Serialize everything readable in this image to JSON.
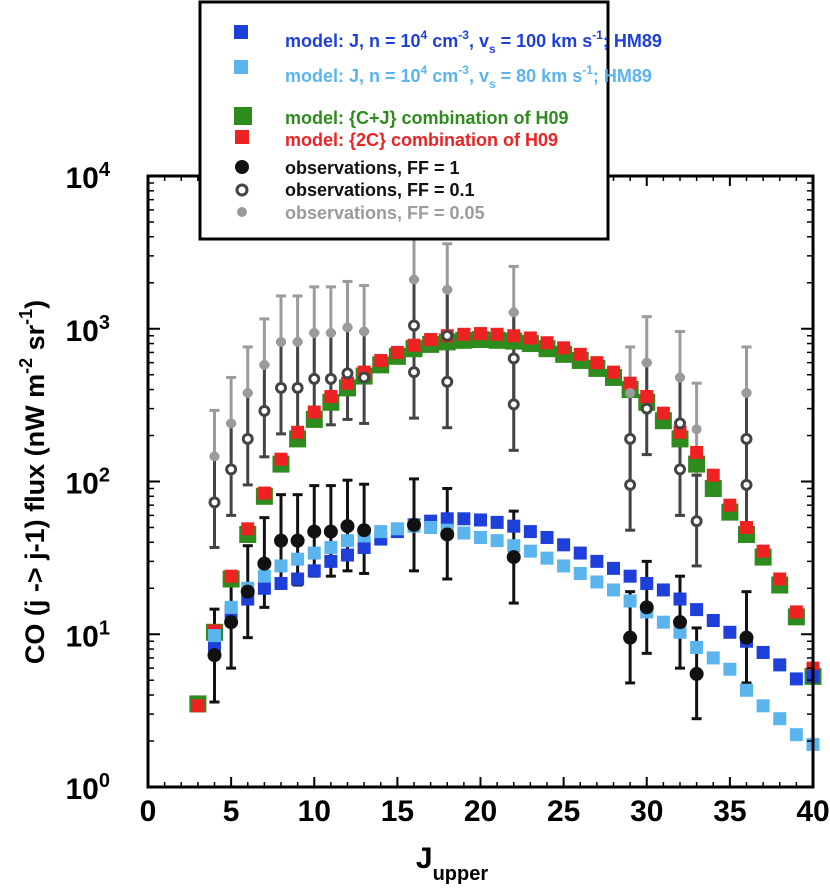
{
  "chart_data": {
    "type": "scatter",
    "title": "",
    "xlabel": "J",
    "xlabel_sub": "upper",
    "ylabel": "CO (j -> j-1) flux (nW m",
    "ylabel_sup1": "-2",
    "ylabel_mid": " sr",
    "ylabel_sup2": "-1",
    "ylabel_end": ")",
    "xlim": [
      0,
      40
    ],
    "ylim": [
      1,
      10000
    ],
    "yscale": "log",
    "x_ticks": [
      "0",
      "5",
      "10",
      "15",
      "20",
      "25",
      "30",
      "35",
      "40"
    ],
    "y_ticks": [
      {
        "base": "10",
        "exp": "0"
      },
      {
        "base": "10",
        "exp": "1"
      },
      {
        "base": "10",
        "exp": "2"
      },
      {
        "base": "10",
        "exp": "3"
      },
      {
        "base": "10",
        "exp": "4"
      }
    ],
    "legend_position": "top-center",
    "series": [
      {
        "name": "model: {C+J} combination of H09",
        "color": "#2e8b1e",
        "marker": "square-large",
        "x": [
          3,
          4,
          5,
          6,
          7,
          8,
          9,
          10,
          11,
          12,
          13,
          14,
          15,
          16,
          17,
          18,
          19,
          20,
          21,
          22,
          23,
          24,
          25,
          26,
          27,
          28,
          29,
          30,
          31,
          32,
          33,
          34,
          35,
          36,
          37,
          38,
          39,
          40
        ],
        "y": [
          3.5,
          10.3,
          23,
          45,
          80,
          130,
          190,
          255,
          330,
          410,
          490,
          580,
          660,
          740,
          790,
          820,
          840,
          850,
          840,
          830,
          800,
          740,
          680,
          620,
          550,
          480,
          400,
          330,
          250,
          190,
          130,
          90,
          63,
          45,
          32,
          21,
          13,
          5.3
        ]
      },
      {
        "name": "model: {2C} combination of H09",
        "color": "#ee2222",
        "marker": "square",
        "x": [
          3,
          4,
          5,
          6,
          7,
          8,
          9,
          10,
          11,
          12,
          13,
          14,
          15,
          16,
          17,
          18,
          19,
          20,
          21,
          22,
          23,
          24,
          25,
          26,
          27,
          28,
          29,
          30,
          31,
          32,
          33,
          34,
          35,
          36,
          37,
          38,
          39,
          40
        ],
        "y": [
          3.4,
          10.5,
          24,
          49,
          84,
          140,
          210,
          285,
          360,
          440,
          520,
          620,
          700,
          780,
          850,
          900,
          920,
          930,
          920,
          900,
          870,
          810,
          750,
          680,
          600,
          520,
          440,
          360,
          280,
          210,
          155,
          110,
          70,
          50,
          35,
          23,
          14,
          6
        ]
      },
      {
        "name": "model: J, n = 10^4 cm^-3, v_s = 100 km s^-1; HM89",
        "color": "#1f3fdb",
        "marker": "square",
        "x": [
          4,
          5,
          6,
          7,
          8,
          9,
          10,
          11,
          12,
          13,
          14,
          15,
          16,
          17,
          18,
          19,
          20,
          21,
          22,
          23,
          24,
          25,
          26,
          27,
          28,
          29,
          30,
          31,
          32,
          33,
          34,
          35,
          36,
          37,
          38,
          39,
          40
        ],
        "y": [
          8.5,
          14,
          17,
          20,
          21.5,
          23,
          26,
          30,
          33,
          37,
          42,
          47,
          52,
          55,
          57,
          57,
          56,
          54,
          51,
          47,
          43,
          38.5,
          34,
          30,
          27,
          24,
          21.5,
          19.5,
          17,
          14.5,
          12.3,
          10.3,
          9,
          7.6,
          6.3,
          5.1,
          5.3
        ]
      },
      {
        "name": "model: J, n = 10^4 cm^-3, v_s = 80 km s^-1; HM89",
        "color": "#5ab4ee",
        "marker": "square",
        "x": [
          4,
          5,
          6,
          7,
          8,
          9,
          10,
          11,
          12,
          13,
          14,
          15,
          16,
          17,
          18,
          19,
          20,
          21,
          22,
          23,
          24,
          25,
          26,
          27,
          28,
          29,
          30,
          31,
          32,
          33,
          34,
          35,
          36,
          37,
          38,
          39,
          40
        ],
        "y": [
          9.8,
          15,
          20,
          24,
          28,
          31,
          34,
          37,
          41,
          44,
          47,
          49,
          51,
          50,
          48,
          46,
          43,
          41,
          38,
          35,
          31.5,
          28,
          25,
          22,
          19.5,
          16.5,
          14,
          12,
          10.3,
          8.2,
          7,
          5.9,
          4.3,
          3.4,
          2.8,
          2.2,
          1.9
        ]
      }
    ],
    "observations": [
      {
        "name": "observations, FF = 1",
        "color": "#111111",
        "marker": "circle",
        "x": [
          4,
          5,
          6,
          7,
          8,
          9,
          10,
          11,
          12,
          13,
          16,
          18,
          22,
          29,
          30,
          32,
          33,
          36
        ],
        "y": [
          7.3,
          12,
          19,
          29,
          41,
          41,
          47,
          47,
          51,
          48,
          52,
          45,
          32,
          9.5,
          15,
          12,
          5.5,
          9.5
        ],
        "lo": [
          3.6,
          6,
          9.5,
          15,
          21,
          21,
          24,
          24,
          26,
          25,
          26,
          23,
          16,
          4.8,
          7.5,
          6,
          2.8,
          4.8
        ],
        "hi": [
          14.6,
          24,
          38,
          58,
          82,
          82,
          94,
          94,
          102,
          96,
          104,
          90,
          64,
          19,
          30,
          24,
          11,
          19
        ]
      },
      {
        "name": "observations, FF = 0.1",
        "color": "#444444",
        "marker": "circle-open",
        "x": [
          4,
          5,
          6,
          7,
          8,
          9,
          10,
          11,
          12,
          13,
          16,
          16,
          18,
          18,
          22,
          22,
          29,
          29,
          30,
          32,
          32,
          33,
          36,
          36
        ],
        "y": [
          73,
          120,
          190,
          290,
          410,
          410,
          470,
          470,
          510,
          480,
          1050,
          520,
          900,
          450,
          640,
          320,
          190,
          95,
          300,
          240,
          120,
          55,
          190,
          95
        ],
        "lo": [
          37,
          60,
          95,
          145,
          205,
          205,
          235,
          235,
          255,
          240,
          525,
          260,
          450,
          225,
          320,
          160,
          95,
          48,
          150,
          120,
          60,
          28,
          95,
          48
        ],
        "hi": [
          146,
          240,
          380,
          580,
          820,
          820,
          940,
          940,
          1020,
          960,
          2100,
          1040,
          1800,
          900,
          1280,
          640,
          380,
          190,
          600,
          480,
          240,
          110,
          380,
          190
        ]
      },
      {
        "name": "observations, FF = 0.05",
        "color": "#9b9b9b",
        "marker": "circle",
        "x": [
          4,
          5,
          6,
          7,
          8,
          9,
          10,
          11,
          12,
          13,
          16,
          18,
          22,
          29,
          30,
          32,
          33,
          36
        ],
        "y": [
          146,
          240,
          380,
          580,
          820,
          820,
          940,
          940,
          1020,
          960,
          2100,
          1800,
          1280,
          380,
          600,
          480,
          220,
          380
        ],
        "lo": [
          73,
          120,
          190,
          290,
          410,
          410,
          470,
          470,
          510,
          480,
          1050,
          900,
          640,
          190,
          300,
          240,
          110,
          190
        ],
        "hi": [
          292,
          480,
          760,
          1160,
          1640,
          1640,
          1880,
          1880,
          2040,
          1920,
          4200,
          3600,
          2560,
          760,
          1200,
          960,
          440,
          760
        ]
      }
    ]
  },
  "legend": {
    "items": [
      {
        "key": "blue",
        "color": "#1f3fdb",
        "marker": "square",
        "t1": "model: J, n = 10",
        "sup1": "4",
        "t2": " cm",
        "sup2": "-3",
        "t3": ", v",
        "sub1": "s",
        "t4": " = 100 km s",
        "sup3": "-1",
        "t5": "; HM89"
      },
      {
        "key": "lightblue",
        "color": "#5ab4ee",
        "marker": "square",
        "t1": "model: J, n = 10",
        "sup1": "4",
        "t2": " cm",
        "sup2": "-3",
        "t3": ", v",
        "sub1": "s",
        "t4": " = 80 km s",
        "sup3": "-1",
        "t5": "; HM89"
      },
      {
        "key": "green",
        "color": "#2e8b1e",
        "marker": "square",
        "text": "model: {C+J} combination of H09"
      },
      {
        "key": "red",
        "color": "#ee2222",
        "marker": "square",
        "text": "model: {2C} combination of H09"
      },
      {
        "key": "obs1",
        "color": "#111111",
        "marker": "circle",
        "text": "observations, FF = 1"
      },
      {
        "key": "obs01",
        "color": "#444444",
        "marker": "circle-open",
        "text": "observations, FF = 0.1"
      },
      {
        "key": "obs005",
        "color": "#9b9b9b",
        "marker": "circle",
        "text": "observations, FF = 0.05"
      }
    ]
  }
}
